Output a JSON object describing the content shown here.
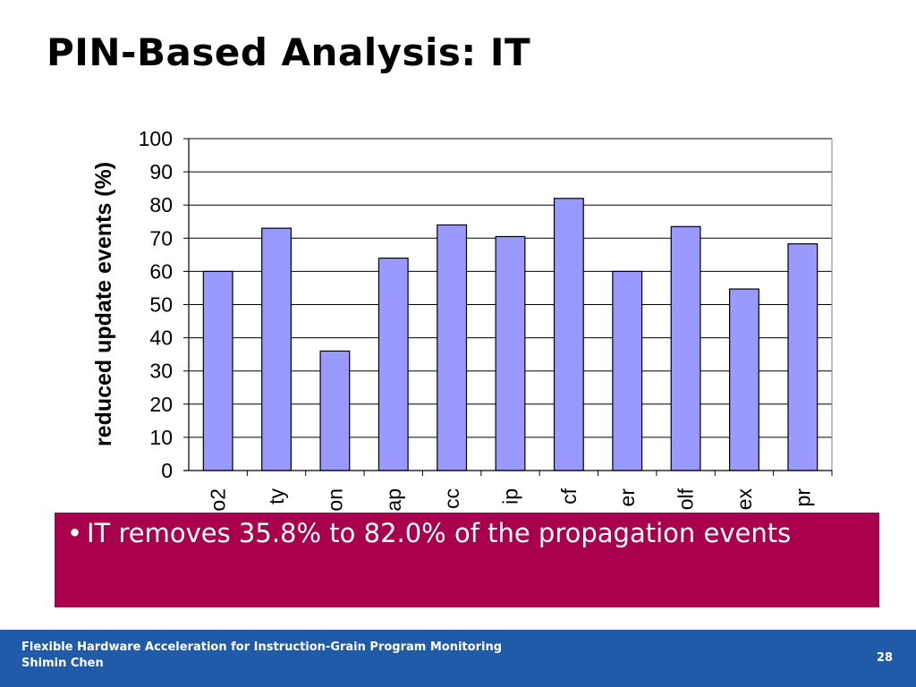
{
  "slide": {
    "title": "PIN-Based Analysis: IT",
    "bullet": "IT removes 35.8% to 82.0% of the propagation events",
    "bullet_marker": "•",
    "footer_title": "Flexible Hardware Acceleration for Instruction-Grain Program Monitoring",
    "footer_author": "Shimin Chen",
    "page_number": "28"
  },
  "colors": {
    "bar_fill": "#9999ff",
    "bullet_box": "#a8004c",
    "footer": "#1f5ba8"
  },
  "chart_data": {
    "type": "bar",
    "title": "",
    "xlabel": "",
    "ylabel": "reduced update events (%)",
    "ylim": [
      0,
      100
    ],
    "yticks": [
      0,
      10,
      20,
      30,
      40,
      50,
      60,
      70,
      80,
      90,
      100
    ],
    "grid": true,
    "categories": [
      "o2",
      "ty",
      "on",
      "ap",
      "cc",
      "ip",
      "cf",
      "er",
      "olf",
      "ex",
      "pr"
    ],
    "values": [
      60,
      73,
      36,
      64,
      74,
      70.5,
      82,
      60,
      73.5,
      54.7,
      68.3
    ]
  }
}
